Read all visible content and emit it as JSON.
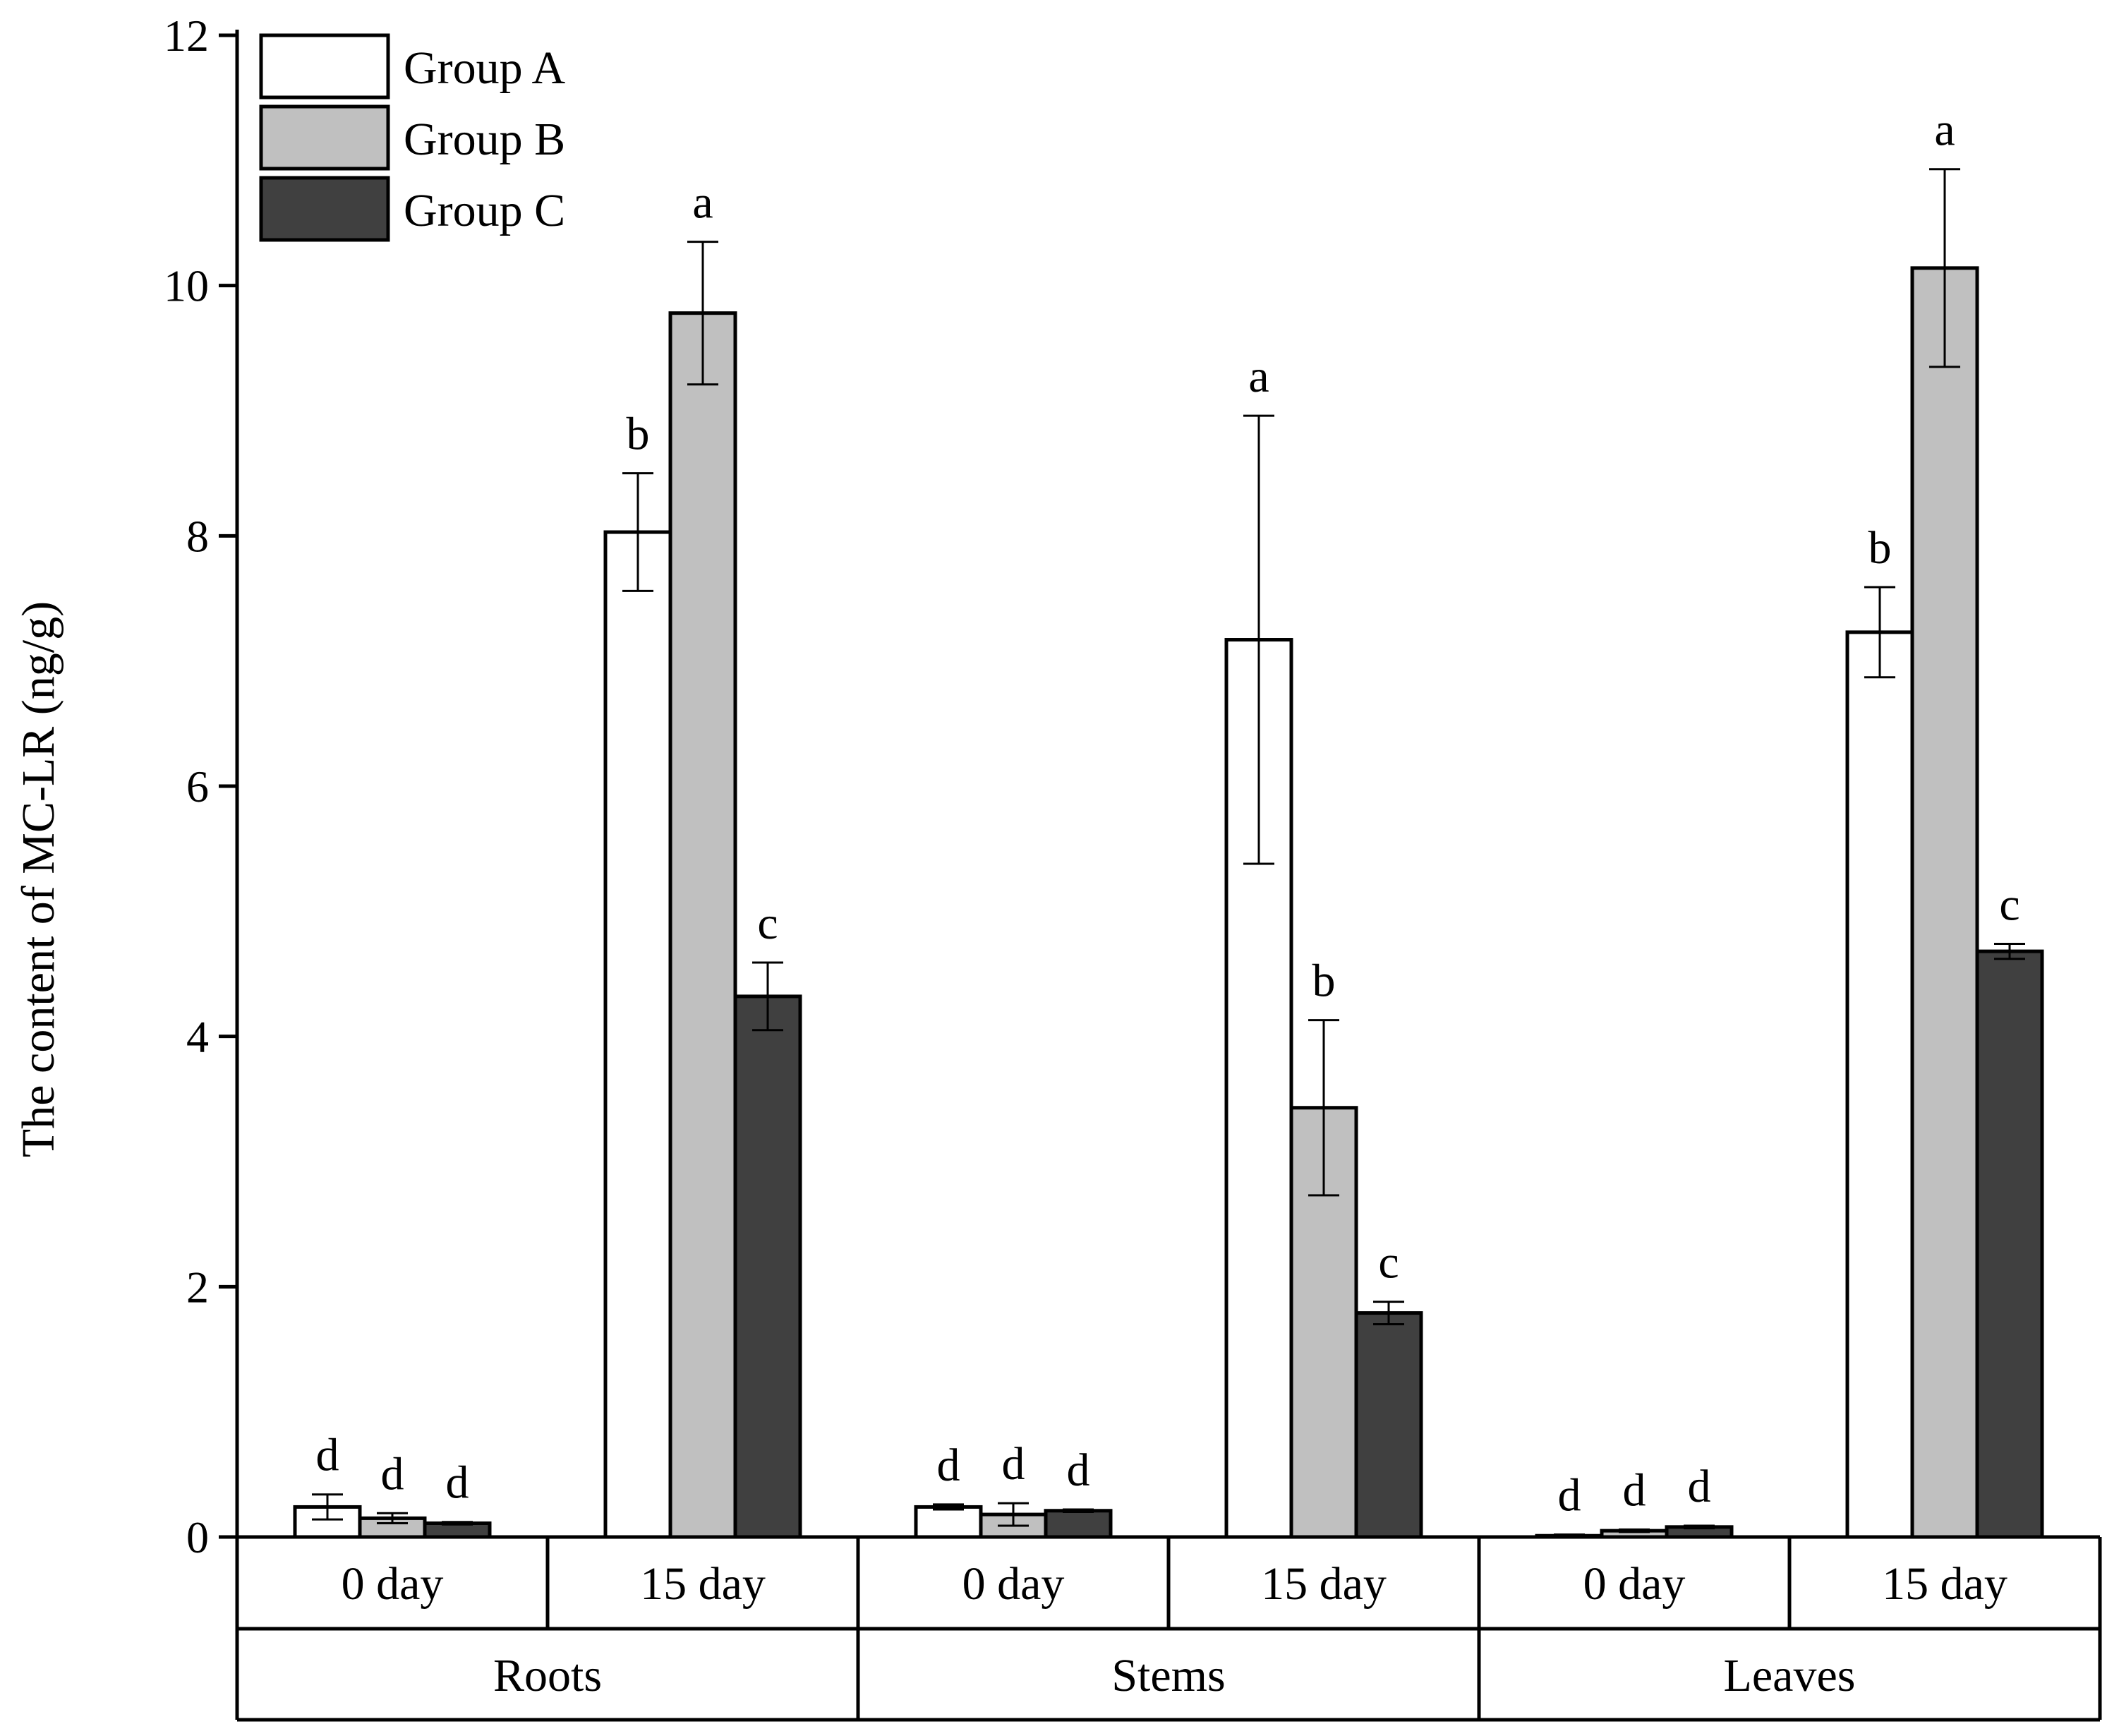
{
  "chart_data": {
    "type": "bar",
    "title": "",
    "xlabel": "",
    "ylabel": "The content of MC-LR (ng/g)",
    "ylim": [
      0,
      12
    ],
    "yticks": [
      0,
      2,
      4,
      6,
      8,
      10,
      12
    ],
    "legend_position": "top-left",
    "groups": [
      {
        "name": "Roots",
        "subgroups": [
          "0 day",
          "15 day"
        ]
      },
      {
        "name": "Stems",
        "subgroups": [
          "0 day",
          "15 day"
        ]
      },
      {
        "name": "Leaves",
        "subgroups": [
          "0 day",
          "15 day"
        ]
      }
    ],
    "categories": [
      "Roots 0 day",
      "Roots 15 day",
      "Stems 0 day",
      "Stems 15 day",
      "Leaves 0 day",
      "Leaves 15 day"
    ],
    "series": [
      {
        "name": "Group A",
        "color": "#ffffff",
        "values": [
          0.24,
          8.03,
          0.24,
          7.17,
          0.01,
          7.23
        ],
        "errors": [
          0.1,
          0.47,
          0.02,
          1.79,
          0.01,
          0.36
        ],
        "labels": [
          "d",
          "b",
          "d",
          "a",
          "d",
          "b"
        ]
      },
      {
        "name": "Group B",
        "color": "#c0c0c0",
        "values": [
          0.15,
          9.78,
          0.18,
          3.43,
          0.05,
          10.14
        ],
        "errors": [
          0.04,
          0.57,
          0.09,
          0.7,
          0.01,
          0.79
        ],
        "labels": [
          "d",
          "a",
          "d",
          "b",
          "d",
          "a"
        ]
      },
      {
        "name": "Group C",
        "color": "#404040",
        "values": [
          0.11,
          4.32,
          0.21,
          1.79,
          0.08,
          4.68
        ],
        "errors": [
          0.01,
          0.27,
          0.01,
          0.09,
          0.01,
          0.06
        ],
        "labels": [
          "d",
          "c",
          "d",
          "c",
          "d",
          "c"
        ]
      }
    ]
  }
}
